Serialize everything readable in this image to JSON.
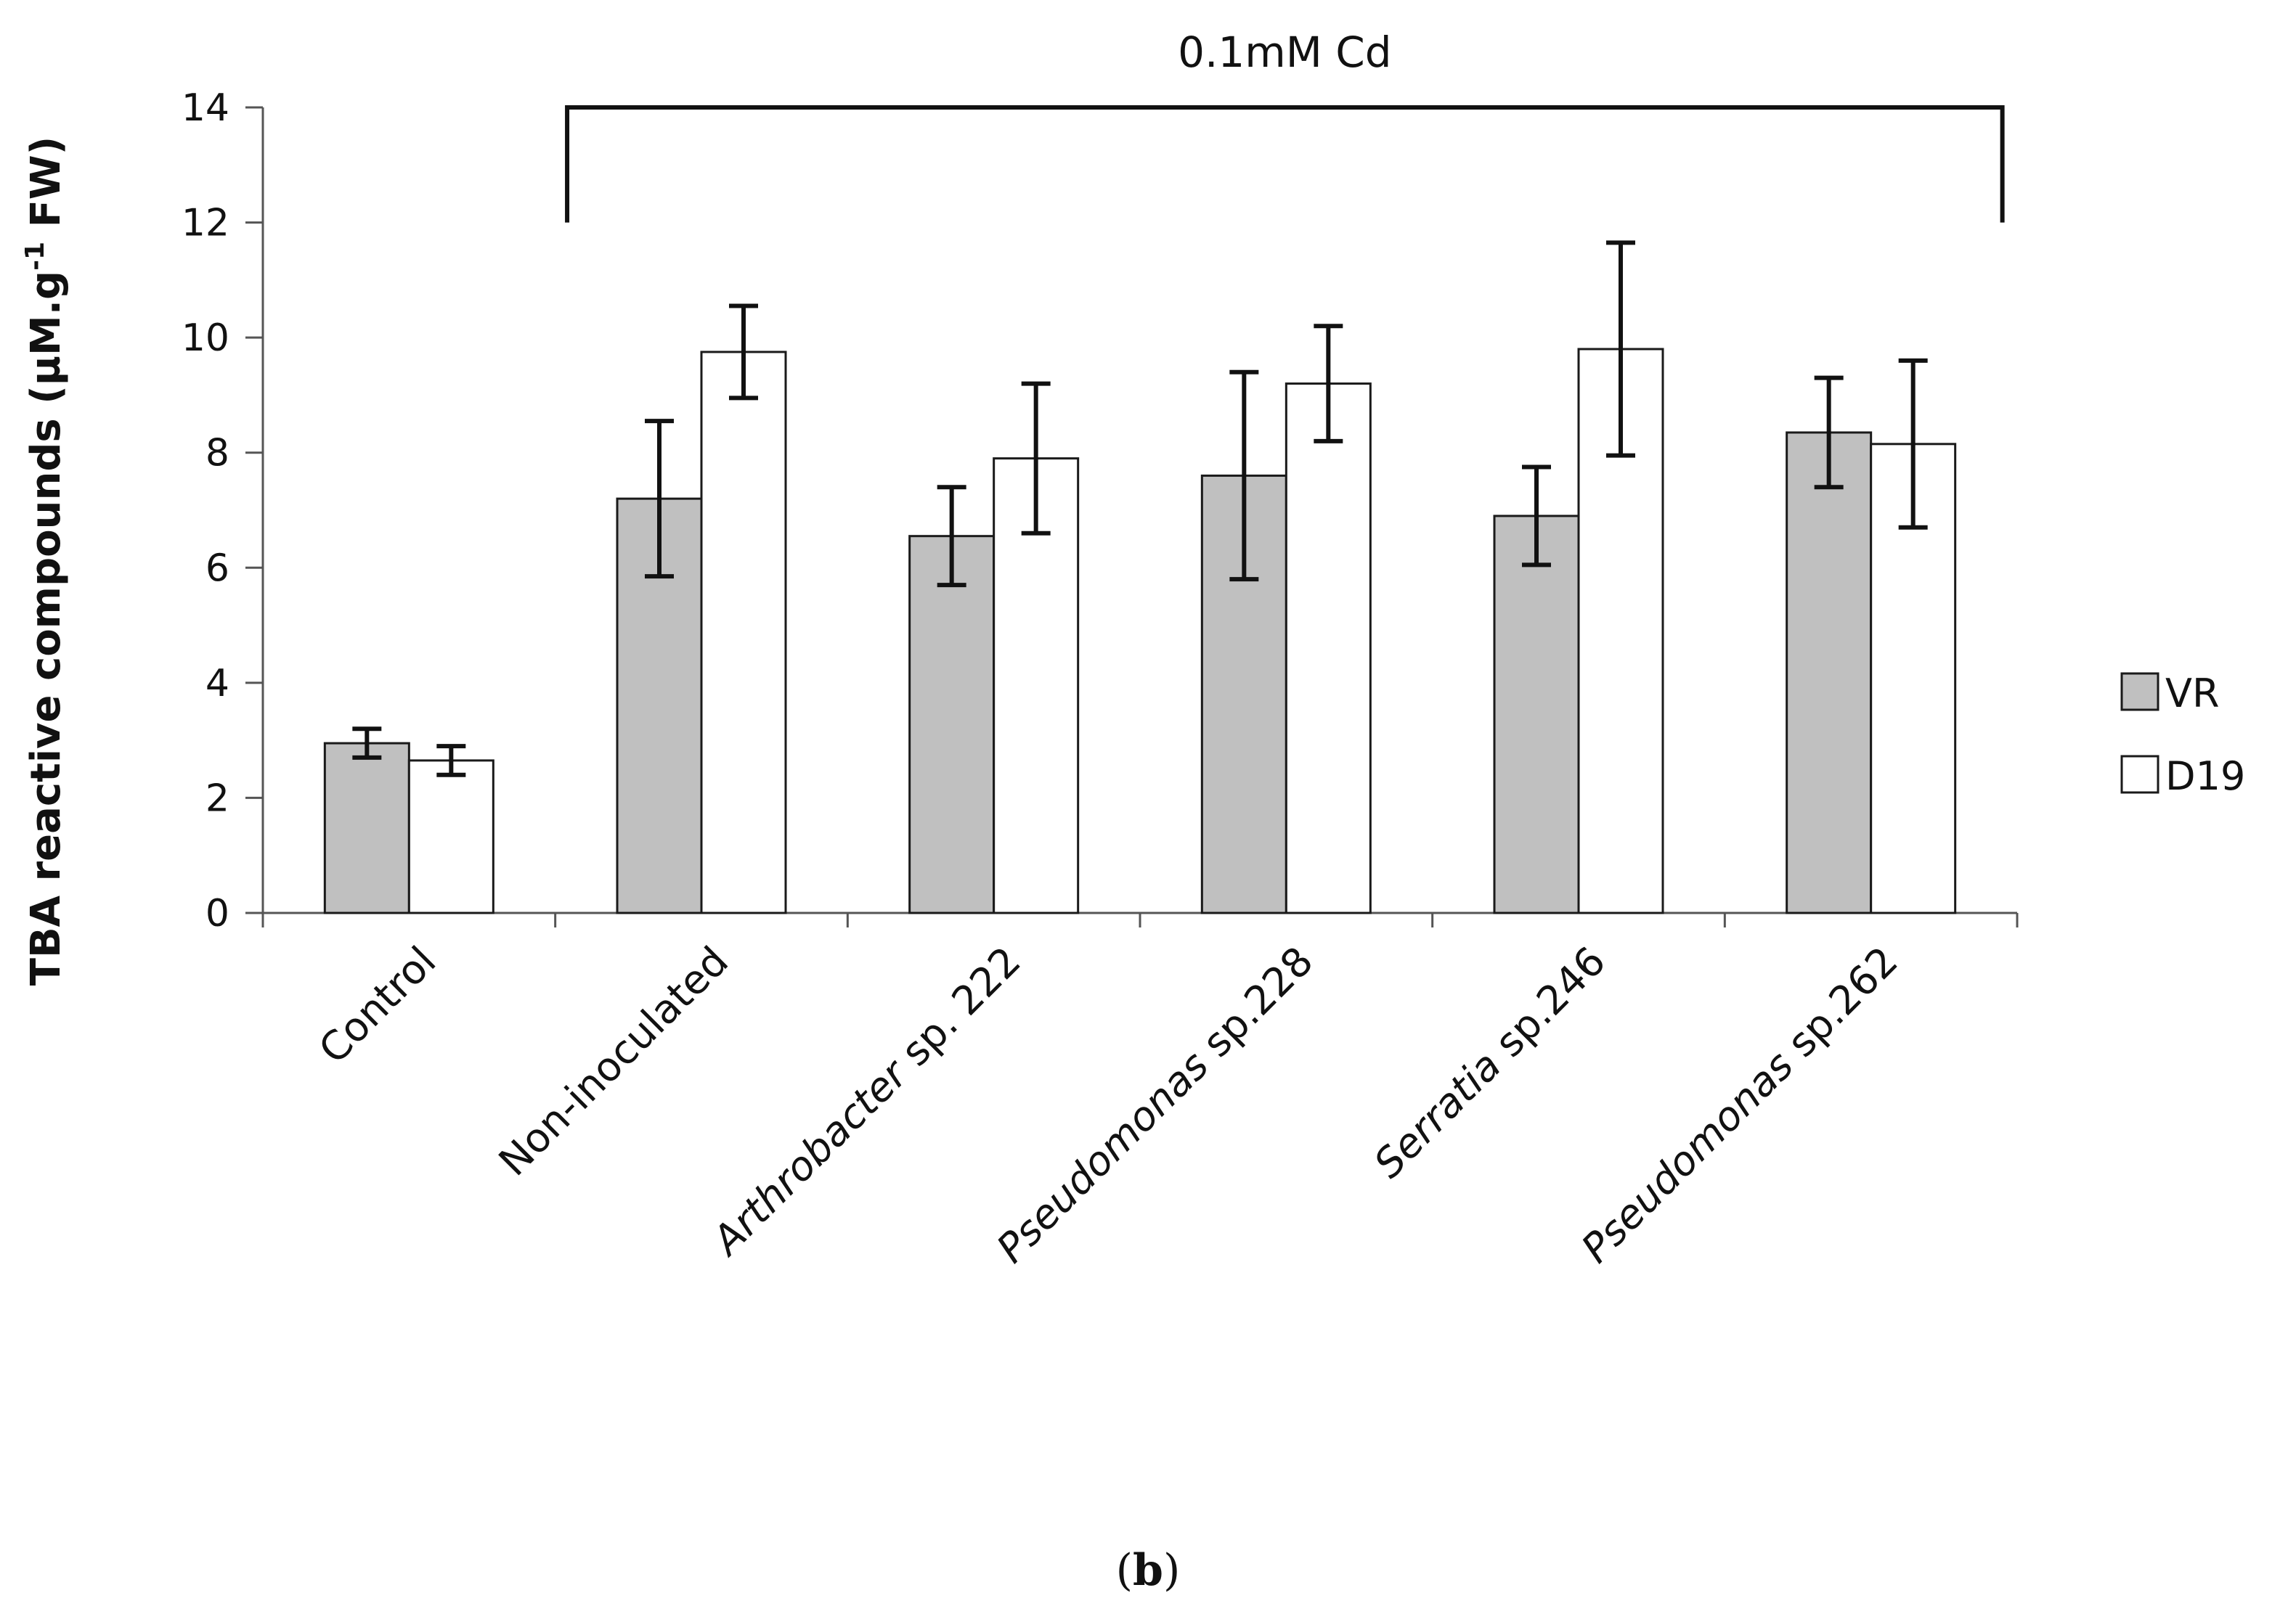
{
  "chart_data": {
    "type": "bar",
    "categories": [
      {
        "parts": [
          {
            "text": "Control",
            "italic": false
          }
        ]
      },
      {
        "parts": [
          {
            "text": "Non-inoculated",
            "italic": false
          }
        ]
      },
      {
        "parts": [
          {
            "text": "Arthrobacter",
            "italic": true
          },
          {
            "text": " sp. 222",
            "italic": false
          }
        ]
      },
      {
        "parts": [
          {
            "text": "Pseudomonas",
            "italic": true
          },
          {
            "text": " sp.228",
            "italic": false
          }
        ]
      },
      {
        "parts": [
          {
            "text": "Serratia",
            "italic": true
          },
          {
            "text": " sp.246",
            "italic": false
          }
        ]
      },
      {
        "parts": [
          {
            "text": "Pseudomonas",
            "italic": true
          },
          {
            "text": " sp.262",
            "italic": false
          }
        ]
      }
    ],
    "series": [
      {
        "name": "VR",
        "color": "#c0c0c0",
        "values": [
          2.95,
          7.2,
          6.55,
          7.6,
          6.9,
          8.35
        ],
        "errors": [
          0.25,
          1.35,
          0.85,
          1.8,
          0.85,
          0.95
        ]
      },
      {
        "name": "D19",
        "color": "#ffffff",
        "values": [
          2.65,
          9.75,
          7.9,
          9.2,
          9.8,
          8.15
        ],
        "errors": [
          0.25,
          0.8,
          1.3,
          1.0,
          1.85,
          1.45
        ]
      }
    ],
    "ylabel_main": "TBA reactive compounds (µM.g",
    "ylabel_sup": "-1",
    "ylabel_tail": " FW)",
    "ylim": [
      0,
      14
    ],
    "yticks": [
      0,
      2,
      4,
      6,
      8,
      10,
      12,
      14
    ],
    "annotation": "0.1mM Cd",
    "legend_position": "right",
    "panel_label": "b"
  }
}
